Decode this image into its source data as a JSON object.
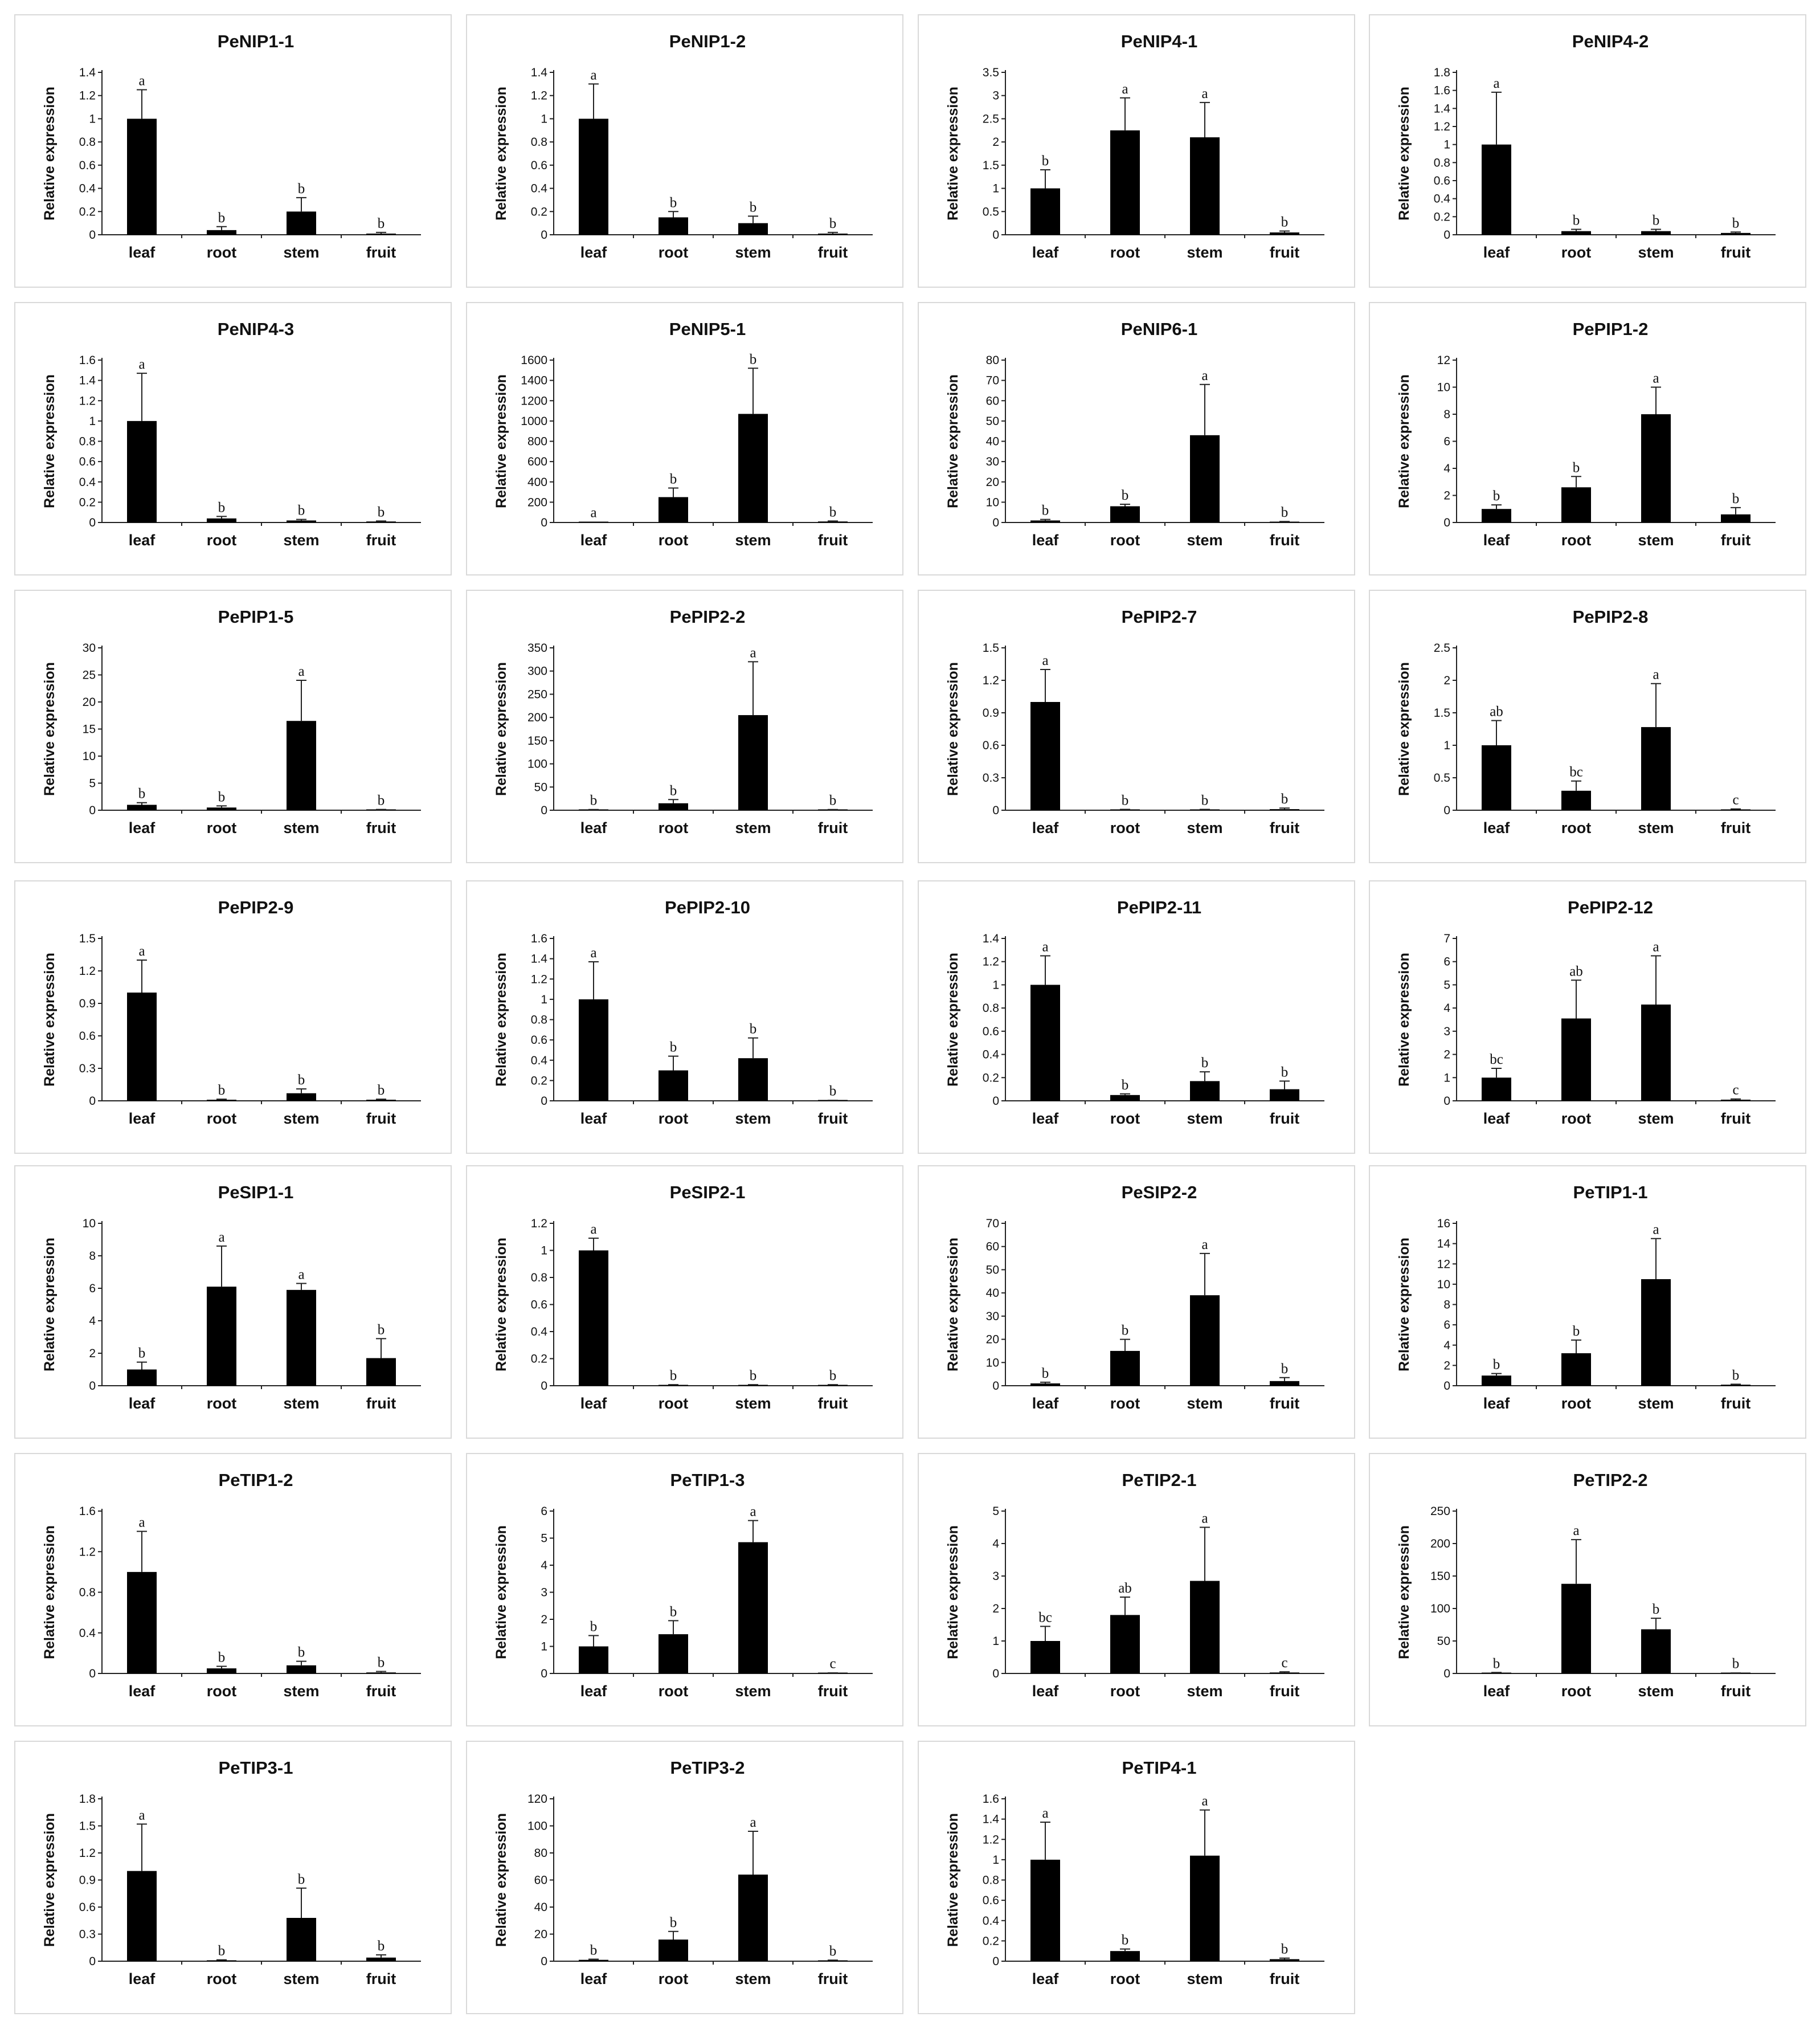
{
  "chart_data": [
    {
      "type": "bar",
      "title": "PeNIP1-1",
      "ylabel": "Relative expression",
      "categories": [
        "leaf",
        "root",
        "stem",
        "fruit"
      ],
      "yticks": [
        "0",
        "0.2",
        "0.4",
        "0.6",
        "0.8",
        "1",
        "1.2",
        "1.4"
      ],
      "ylim": [
        0,
        1.4
      ],
      "values": [
        1.0,
        0.04,
        0.2,
        0.01
      ],
      "errors": [
        0.25,
        0.03,
        0.12,
        0.01
      ],
      "labels": [
        "a",
        "b",
        "b",
        "b"
      ]
    },
    {
      "type": "bar",
      "title": "PeNIP1-2",
      "ylabel": "Relative expression",
      "categories": [
        "leaf",
        "root",
        "stem",
        "fruit"
      ],
      "yticks": [
        "0",
        "0.2",
        "0.4",
        "0.6",
        "0.8",
        "1",
        "1.2",
        "1.4"
      ],
      "ylim": [
        0,
        1.4
      ],
      "values": [
        1.0,
        0.15,
        0.1,
        0.01
      ],
      "errors": [
        0.3,
        0.05,
        0.06,
        0.01
      ],
      "labels": [
        "a",
        "b",
        "b",
        "b"
      ]
    },
    {
      "type": "bar",
      "title": "PeNIP4-1",
      "ylabel": "Relative expression",
      "categories": [
        "leaf",
        "root",
        "stem",
        "fruit"
      ],
      "yticks": [
        "0",
        "0.5",
        "1",
        "1.5",
        "2",
        "2.5",
        "3",
        "3.5"
      ],
      "ylim": [
        0,
        3.5
      ],
      "values": [
        1.0,
        2.25,
        2.1,
        0.05
      ],
      "errors": [
        0.4,
        0.7,
        0.75,
        0.03
      ],
      "labels": [
        "b",
        "a",
        "a",
        "b"
      ]
    },
    {
      "type": "bar",
      "title": "PeNIP4-2",
      "ylabel": "Relative expression",
      "categories": [
        "leaf",
        "root",
        "stem",
        "fruit"
      ],
      "yticks": [
        "0",
        "0.2",
        "0.4",
        "0.6",
        "0.8",
        "1",
        "1.2",
        "1.4",
        "1.6",
        "1.8"
      ],
      "ylim": [
        0,
        1.8
      ],
      "values": [
        1.0,
        0.04,
        0.04,
        0.02
      ],
      "errors": [
        0.58,
        0.02,
        0.02,
        0.01
      ],
      "labels": [
        "a",
        "b",
        "b",
        "b"
      ]
    },
    {
      "type": "bar",
      "title": "PeNIP4-3",
      "ylabel": "Relative expression",
      "categories": [
        "leaf",
        "root",
        "stem",
        "fruit"
      ],
      "yticks": [
        "0",
        "0.2",
        "0.4",
        "0.6",
        "0.8",
        "1",
        "1.2",
        "1.4",
        "1.6"
      ],
      "ylim": [
        0,
        1.6
      ],
      "values": [
        1.0,
        0.04,
        0.02,
        0.01
      ],
      "errors": [
        0.47,
        0.02,
        0.01,
        0.005
      ],
      "labels": [
        "a",
        "b",
        "b",
        "b"
      ]
    },
    {
      "type": "bar",
      "title": "PeNIP5-1",
      "ylabel": "Relative expression",
      "categories": [
        "leaf",
        "root",
        "stem",
        "fruit"
      ],
      "yticks": [
        "0",
        "200",
        "400",
        "600",
        "800",
        "1000",
        "1200",
        "1400",
        "1600"
      ],
      "ylim": [
        0,
        1600
      ],
      "values": [
        1,
        250,
        1070,
        10
      ],
      "errors": [
        0,
        90,
        450,
        5
      ],
      "labels": [
        "a",
        "b",
        "b",
        "b"
      ]
    },
    {
      "type": "bar",
      "title": "PeNIP6-1",
      "ylabel": "Relative expression",
      "categories": [
        "leaf",
        "root",
        "stem",
        "fruit"
      ],
      "yticks": [
        "0",
        "10",
        "20",
        "30",
        "40",
        "50",
        "60",
        "70",
        "80"
      ],
      "ylim": [
        0,
        80
      ],
      "values": [
        1,
        8,
        43,
        0.3
      ],
      "errors": [
        0.5,
        1,
        25,
        0.2
      ],
      "labels": [
        "b",
        "b",
        "a",
        "b"
      ]
    },
    {
      "type": "bar",
      "title": "PePIP1-2",
      "ylabel": "Relative expression",
      "categories": [
        "leaf",
        "root",
        "stem",
        "fruit"
      ],
      "yticks": [
        "0",
        "2",
        "4",
        "6",
        "8",
        "10",
        "12"
      ],
      "ylim": [
        0,
        12
      ],
      "values": [
        1.0,
        2.6,
        8.0,
        0.6
      ],
      "errors": [
        0.3,
        0.8,
        2.0,
        0.5
      ],
      "labels": [
        "b",
        "b",
        "a",
        "b"
      ]
    },
    {
      "type": "bar",
      "title": "PePIP1-5",
      "ylabel": "Relative expression",
      "categories": [
        "leaf",
        "root",
        "stem",
        "fruit"
      ],
      "yticks": [
        "0",
        "5",
        "10",
        "15",
        "20",
        "25",
        "30"
      ],
      "ylim": [
        0,
        30
      ],
      "values": [
        1.0,
        0.5,
        16.5,
        0.1
      ],
      "errors": [
        0.4,
        0.3,
        7.5,
        0.05
      ],
      "labels": [
        "b",
        "b",
        "a",
        "b"
      ]
    },
    {
      "type": "bar",
      "title": "PePIP2-2",
      "ylabel": "Relative expression",
      "categories": [
        "leaf",
        "root",
        "stem",
        "fruit"
      ],
      "yticks": [
        "0",
        "50",
        "100",
        "150",
        "200",
        "250",
        "300",
        "350"
      ],
      "ylim": [
        0,
        350
      ],
      "values": [
        1,
        15,
        205,
        1
      ],
      "errors": [
        0.5,
        8,
        115,
        0.5
      ],
      "labels": [
        "b",
        "b",
        "a",
        "b"
      ]
    },
    {
      "type": "bar",
      "title": "PePIP2-7",
      "ylabel": "Relative expression",
      "categories": [
        "leaf",
        "root",
        "stem",
        "fruit"
      ],
      "yticks": [
        "0",
        "0.3",
        "0.6",
        "0.9",
        "1.2",
        "1.5"
      ],
      "ylim": [
        0,
        1.5
      ],
      "values": [
        1.0,
        0.005,
        0.005,
        0.01
      ],
      "errors": [
        0.3,
        0.003,
        0.003,
        0.01
      ],
      "labels": [
        "a",
        "b",
        "b",
        "b"
      ]
    },
    {
      "type": "bar",
      "title": "PePIP2-8",
      "ylabel": "Relative expression",
      "categories": [
        "leaf",
        "root",
        "stem",
        "fruit"
      ],
      "yticks": [
        "0",
        "0.5",
        "1",
        "1.5",
        "2",
        "2.5"
      ],
      "ylim": [
        0,
        2.5
      ],
      "values": [
        1.0,
        0.3,
        1.28,
        0.01
      ],
      "errors": [
        0.38,
        0.15,
        0.67,
        0.01
      ],
      "labels": [
        "ab",
        "bc",
        "a",
        "c"
      ]
    },
    {
      "type": "bar",
      "title": "PePIP2-9",
      "ylabel": "Relative expression",
      "categories": [
        "leaf",
        "root",
        "stem",
        "fruit"
      ],
      "yticks": [
        "0",
        "0.3",
        "0.6",
        "0.9",
        "1.2",
        "1.5"
      ],
      "ylim": [
        0,
        1.5
      ],
      "values": [
        1.0,
        0.01,
        0.07,
        0.01
      ],
      "errors": [
        0.3,
        0.005,
        0.04,
        0.005
      ],
      "labels": [
        "a",
        "b",
        "b",
        "b"
      ]
    },
    {
      "type": "bar",
      "title": "PePIP2-10",
      "ylabel": "Relative expression",
      "categories": [
        "leaf",
        "root",
        "stem",
        "fruit"
      ],
      "yticks": [
        "0",
        "0.2",
        "0.4",
        "0.6",
        "0.8",
        "1",
        "1.2",
        "1.4",
        "1.6"
      ],
      "ylim": [
        0,
        1.6
      ],
      "values": [
        1.0,
        0.3,
        0.42,
        0.003
      ],
      "errors": [
        0.37,
        0.14,
        0.2,
        0.002
      ],
      "labels": [
        "a",
        "b",
        "b",
        "b"
      ]
    },
    {
      "type": "bar",
      "title": "PePIP2-11",
      "ylabel": "Relative expression",
      "categories": [
        "leaf",
        "root",
        "stem",
        "fruit"
      ],
      "yticks": [
        "0",
        "0.2",
        "0.4",
        "0.6",
        "0.8",
        "1",
        "1.2",
        "1.4"
      ],
      "ylim": [
        0,
        1.4
      ],
      "values": [
        1.0,
        0.05,
        0.17,
        0.1
      ],
      "errors": [
        0.25,
        0.01,
        0.08,
        0.07
      ],
      "labels": [
        "a",
        "b",
        "b",
        "b"
      ]
    },
    {
      "type": "bar",
      "title": "PePIP2-12",
      "ylabel": "Relative expression",
      "categories": [
        "leaf",
        "root",
        "stem",
        "fruit"
      ],
      "yticks": [
        "0",
        "1",
        "2",
        "3",
        "4",
        "5",
        "6",
        "7"
      ],
      "ylim": [
        0,
        7
      ],
      "values": [
        1.0,
        3.55,
        4.15,
        0.05
      ],
      "errors": [
        0.4,
        1.65,
        2.1,
        0.03
      ],
      "labels": [
        "bc",
        "ab",
        "a",
        "c"
      ]
    },
    {
      "type": "bar",
      "title": "PeSIP1-1",
      "ylabel": "Relative expression",
      "categories": [
        "leaf",
        "root",
        "stem",
        "fruit"
      ],
      "yticks": [
        "0",
        "2",
        "4",
        "6",
        "8",
        "10"
      ],
      "ylim": [
        0,
        10
      ],
      "values": [
        1.0,
        6.1,
        5.9,
        1.7
      ],
      "errors": [
        0.45,
        2.5,
        0.4,
        1.2
      ],
      "labels": [
        "b",
        "a",
        "a",
        "b"
      ]
    },
    {
      "type": "bar",
      "title": "PeSIP2-1",
      "ylabel": "Relative expression",
      "categories": [
        "leaf",
        "root",
        "stem",
        "fruit"
      ],
      "yticks": [
        "0",
        "0.2",
        "0.4",
        "0.6",
        "0.8",
        "1",
        "1.2"
      ],
      "ylim": [
        0,
        1.2
      ],
      "values": [
        1.0,
        0.005,
        0.005,
        0.005
      ],
      "errors": [
        0.09,
        0.003,
        0.003,
        0.003
      ],
      "labels": [
        "a",
        "b",
        "b",
        "b"
      ]
    },
    {
      "type": "bar",
      "title": "PeSIP2-2",
      "ylabel": "Relative expression",
      "categories": [
        "leaf",
        "root",
        "stem",
        "fruit"
      ],
      "yticks": [
        "0",
        "10",
        "20",
        "30",
        "40",
        "50",
        "60",
        "70"
      ],
      "ylim": [
        0,
        70
      ],
      "values": [
        1,
        15,
        39,
        2
      ],
      "errors": [
        0.5,
        5,
        18,
        1.5
      ],
      "labels": [
        "b",
        "b",
        "a",
        "b"
      ]
    },
    {
      "type": "bar",
      "title": "PeTIP1-1",
      "ylabel": "Relative expression",
      "categories": [
        "leaf",
        "root",
        "stem",
        "fruit"
      ],
      "yticks": [
        "0",
        "2",
        "4",
        "6",
        "8",
        "10",
        "12",
        "14",
        "16"
      ],
      "ylim": [
        0,
        16
      ],
      "values": [
        1.0,
        3.2,
        10.5,
        0.1
      ],
      "errors": [
        0.2,
        1.3,
        4.0,
        0.05
      ],
      "labels": [
        "b",
        "b",
        "a",
        "b"
      ]
    },
    {
      "type": "bar",
      "title": "PeTIP1-2",
      "ylabel": "Relative expression",
      "categories": [
        "leaf",
        "root",
        "stem",
        "fruit"
      ],
      "yticks": [
        "0",
        "0.4",
        "0.8",
        "1.2",
        "1.6"
      ],
      "ylim": [
        0,
        1.6
      ],
      "values": [
        1.0,
        0.05,
        0.08,
        0.01
      ],
      "errors": [
        0.4,
        0.02,
        0.04,
        0.01
      ],
      "labels": [
        "a",
        "b",
        "b",
        "b"
      ]
    },
    {
      "type": "bar",
      "title": "PeTIP1-3",
      "ylabel": "Relative expression",
      "categories": [
        "leaf",
        "root",
        "stem",
        "fruit"
      ],
      "yticks": [
        "0",
        "1",
        "2",
        "3",
        "4",
        "5",
        "6"
      ],
      "ylim": [
        0,
        6
      ],
      "values": [
        1.0,
        1.45,
        4.85,
        0.01
      ],
      "errors": [
        0.4,
        0.5,
        0.8,
        0.01
      ],
      "labels": [
        "b",
        "b",
        "a",
        "c"
      ]
    },
    {
      "type": "bar",
      "title": "PeTIP2-1",
      "ylabel": "Relative expression",
      "categories": [
        "leaf",
        "root",
        "stem",
        "fruit"
      ],
      "yticks": [
        "0",
        "1",
        "2",
        "3",
        "4",
        "5"
      ],
      "ylim": [
        0,
        5
      ],
      "values": [
        1.0,
        1.8,
        2.85,
        0.03
      ],
      "errors": [
        0.45,
        0.55,
        1.65,
        0.02
      ],
      "labels": [
        "bc",
        "ab",
        "a",
        "c"
      ]
    },
    {
      "type": "bar",
      "title": "PeTIP2-2",
      "ylabel": "Relative expression",
      "categories": [
        "leaf",
        "root",
        "stem",
        "fruit"
      ],
      "yticks": [
        "0",
        "50",
        "100",
        "150",
        "200",
        "250"
      ],
      "ylim": [
        0,
        250
      ],
      "values": [
        1,
        138,
        68,
        0.5
      ],
      "errors": [
        0.5,
        68,
        17,
        0.3
      ],
      "labels": [
        "b",
        "a",
        "b",
        "b"
      ]
    },
    {
      "type": "bar",
      "title": "PeTIP3-1",
      "ylabel": "Relative expression",
      "categories": [
        "leaf",
        "root",
        "stem",
        "fruit"
      ],
      "yticks": [
        "0",
        "0.3",
        "0.6",
        "0.9",
        "1.2",
        "1.5",
        "1.8"
      ],
      "ylim": [
        0,
        1.8
      ],
      "values": [
        1.0,
        0.01,
        0.48,
        0.04
      ],
      "errors": [
        0.52,
        0.005,
        0.33,
        0.03
      ],
      "labels": [
        "a",
        "b",
        "b",
        "b"
      ]
    },
    {
      "type": "bar",
      "title": "PeTIP3-2",
      "ylabel": "Relative expression",
      "categories": [
        "leaf",
        "root",
        "stem",
        "fruit"
      ],
      "yticks": [
        "0",
        "20",
        "40",
        "60",
        "80",
        "100",
        "120"
      ],
      "ylim": [
        0,
        120
      ],
      "values": [
        1,
        16,
        64,
        0.5
      ],
      "errors": [
        0.5,
        6,
        32,
        0.3
      ],
      "labels": [
        "b",
        "b",
        "a",
        "b"
      ]
    },
    {
      "type": "bar",
      "title": "PeTIP4-1",
      "ylabel": "Relative expression",
      "categories": [
        "leaf",
        "root",
        "stem",
        "fruit"
      ],
      "yticks": [
        "0",
        "0.2",
        "0.4",
        "0.6",
        "0.8",
        "1",
        "1.2",
        "1.4",
        "1.6"
      ],
      "ylim": [
        0,
        1.6
      ],
      "values": [
        1.0,
        0.1,
        1.04,
        0.02
      ],
      "errors": [
        0.37,
        0.02,
        0.45,
        0.01
      ],
      "labels": [
        "a",
        "b",
        "a",
        "b"
      ]
    }
  ]
}
